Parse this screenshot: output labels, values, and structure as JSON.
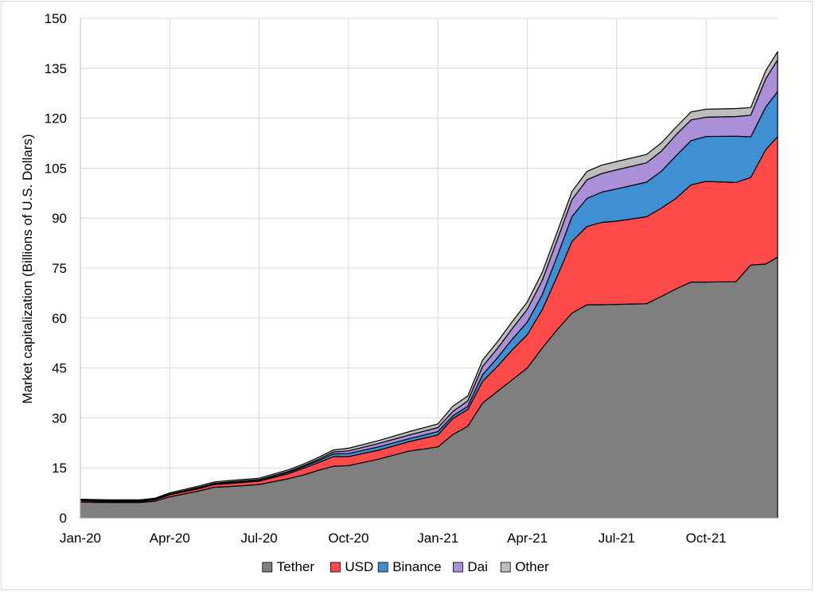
{
  "chart_data": {
    "type": "area",
    "stacked": true,
    "title": "",
    "xlabel": "",
    "ylabel": "Market capitalization (Billions of U.S. Dollars)",
    "ylim": [
      0,
      150
    ],
    "yticks": [
      0,
      15,
      30,
      45,
      60,
      75,
      90,
      105,
      120,
      135,
      150
    ],
    "xlim_months": [
      0,
      23.4
    ],
    "xtick_labels": [
      "Jan-20",
      "Apr-20",
      "Jul-20",
      "Oct-20",
      "Jan-21",
      "Apr-21",
      "Jul-21",
      "Oct-21"
    ],
    "xtick_positions_months": [
      0,
      3,
      6,
      9,
      12,
      15,
      18,
      21
    ],
    "grid": true,
    "legend_position": "bottom",
    "x_months": [
      0,
      1,
      2,
      2.5,
      3,
      4,
      4.5,
      5,
      6,
      7,
      7.5,
      8,
      8.5,
      9,
      10,
      11,
      12,
      12.5,
      13,
      13.5,
      14,
      14.5,
      15,
      15.5,
      16,
      16.5,
      17,
      17.5,
      18,
      19,
      19.5,
      20,
      20.5,
      21,
      22,
      22.5,
      23,
      23.4
    ],
    "series": [
      {
        "name": "Tether",
        "color": "#7f7f7f",
        "values": [
          4.7,
          4.6,
          4.6,
          5.0,
          6.3,
          8.1,
          9.2,
          9.4,
          10.0,
          11.8,
          12.9,
          14.3,
          15.5,
          15.7,
          17.6,
          20.0,
          21.3,
          25.0,
          27.5,
          34.5,
          38.0,
          41.5,
          45.0,
          51.0,
          56.5,
          61.5,
          64.0,
          64.0,
          64.1,
          64.3,
          66.5,
          68.8,
          70.8,
          70.8,
          70.9,
          75.9,
          76.2,
          78.3
        ]
      },
      {
        "name": "USD",
        "color": "#ff4a4a",
        "values": [
          0.4,
          0.3,
          0.3,
          0.4,
          0.6,
          0.7,
          0.8,
          0.9,
          1.0,
          1.5,
          2.0,
          2.3,
          2.9,
          2.7,
          2.7,
          2.8,
          3.6,
          4.8,
          5.0,
          6.5,
          7.5,
          9.0,
          10.0,
          11.5,
          16.0,
          21.5,
          23.5,
          24.7,
          25.0,
          26.1,
          26.5,
          27.2,
          29.2,
          30.2,
          29.8,
          26.3,
          34.3,
          36.2
        ]
      },
      {
        "name": "Binance",
        "color": "#3f90d2",
        "values": [
          0.1,
          0.1,
          0.1,
          0.1,
          0.2,
          0.3,
          0.3,
          0.3,
          0.3,
          0.4,
          0.5,
          0.6,
          0.8,
          0.9,
          1.0,
          0.9,
          1.0,
          0.8,
          1.0,
          2.0,
          2.6,
          3.2,
          3.8,
          4.5,
          6.0,
          7.5,
          8.4,
          9.1,
          9.7,
          10.4,
          11.1,
          12.8,
          13.3,
          13.5,
          13.9,
          12.2,
          12.8,
          13.5
        ]
      },
      {
        "name": "Dai",
        "color": "#ab8fd8",
        "values": [
          0.1,
          0.1,
          0.1,
          0.1,
          0.1,
          0.1,
          0.1,
          0.2,
          0.2,
          0.3,
          0.3,
          0.4,
          0.6,
          0.8,
          1.0,
          1.1,
          1.2,
          1.3,
          1.6,
          2.5,
          2.8,
          3.2,
          3.8,
          4.3,
          4.9,
          5.1,
          5.6,
          5.6,
          5.7,
          5.8,
          6.0,
          6.3,
          6.2,
          5.8,
          5.9,
          6.5,
          8.5,
          9.5
        ]
      },
      {
        "name": "Other",
        "color": "#bdbdbd",
        "values": [
          0.3,
          0.3,
          0.3,
          0.3,
          0.3,
          0.4,
          0.4,
          0.4,
          0.4,
          0.5,
          0.5,
          0.6,
          0.6,
          0.8,
          0.9,
          1.0,
          1.1,
          1.6,
          1.5,
          1.9,
          2.0,
          2.1,
          2.2,
          2.4,
          2.4,
          2.4,
          2.5,
          2.5,
          2.5,
          2.5,
          2.5,
          2.3,
          2.4,
          2.4,
          2.4,
          2.3,
          2.4,
          2.5
        ]
      }
    ]
  }
}
